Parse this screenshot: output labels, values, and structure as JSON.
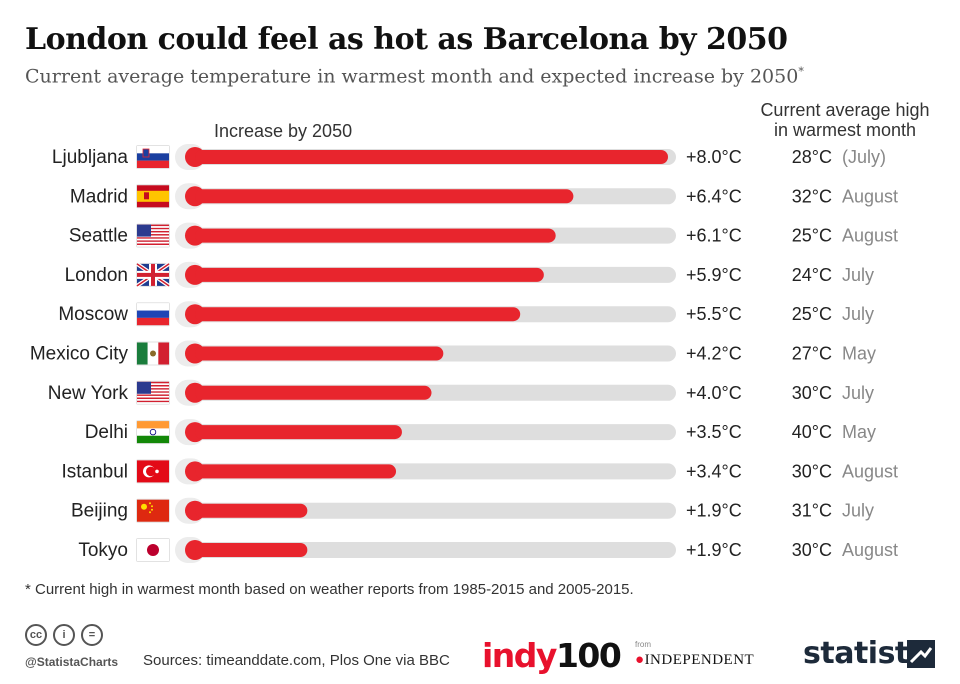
{
  "header": {
    "title": "London could feel as hot as Barcelona by 2050",
    "subtitle": "Current average temperature in warmest month and expected increase by 2050",
    "subtitle_mark": "*"
  },
  "columns": {
    "increase": "Increase by 2050",
    "current_line1": "Current average high",
    "current_line2": "in warmest month"
  },
  "chart_data": {
    "type": "bar",
    "orientation": "horizontal",
    "xlim": [
      0,
      8
    ],
    "categories": [
      "Ljubljana",
      "Madrid",
      "Seattle",
      "London",
      "Moscow",
      "Mexico City",
      "New York",
      "Delhi",
      "Istanbul",
      "Beijing",
      "Tokyo"
    ],
    "series": [
      {
        "name": "Increase by 2050",
        "values": [
          8.0,
          6.4,
          6.1,
          5.9,
          5.5,
          4.2,
          4.0,
          3.5,
          3.4,
          1.9,
          1.9
        ]
      }
    ],
    "value_labels": [
      "+8.0°C",
      "+6.4°C",
      "+6.1°C",
      "+5.9°C",
      "+5.5°C",
      "+4.2°C",
      "+4.0°C",
      "+3.5°C",
      "+3.4°C",
      "+1.9°C",
      "+1.9°C"
    ],
    "current_high": [
      "28°C",
      "32°C",
      "25°C",
      "24°C",
      "25°C",
      "27°C",
      "30°C",
      "40°C",
      "30°C",
      "31°C",
      "30°C"
    ],
    "warmest_month": [
      "(July)",
      "August",
      "August",
      "July",
      "July",
      "May",
      "July",
      "May",
      "August",
      "July",
      "August"
    ],
    "flags": [
      "slovenia-flag",
      "spain-flag",
      "usa-flag",
      "uk-flag",
      "russia-flag",
      "mexico-flag",
      "usa-flag",
      "india-flag",
      "turkey-flag",
      "china-flag",
      "japan-flag"
    ],
    "colors": {
      "bar": "#e8252d",
      "track": "#dedede",
      "bulb_ring": "#ececec",
      "month": "#888888"
    }
  },
  "footer": {
    "footnote": "* Current high in warmest month based on weather reports from 1985-2015 and 2005-2015.",
    "handle": "@StatistaCharts",
    "sources": "Sources: timeanddate.com, Plos One via BBC",
    "indy_a": "indy",
    "indy_b": "100",
    "from": "from",
    "independent": "INDEPENDENT",
    "statista": "statista",
    "cc_icons": [
      "cc",
      "i",
      "="
    ]
  }
}
